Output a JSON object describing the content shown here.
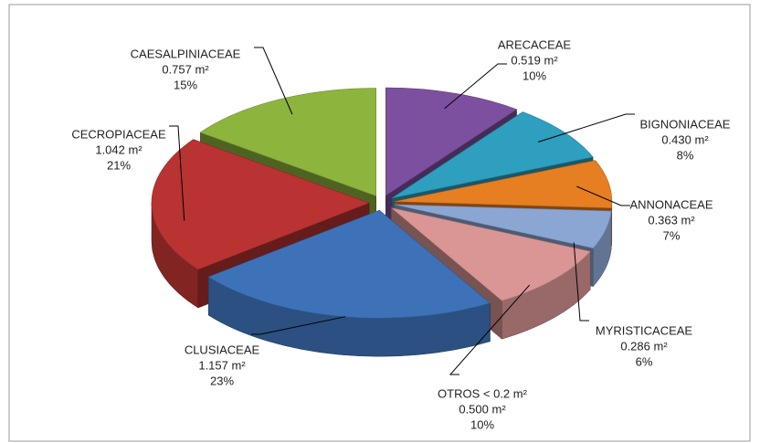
{
  "chart_data": {
    "type": "pie3d",
    "categories": [
      "ARECACEAE",
      "BIGNONIACEAE",
      "ANNONACEAE",
      "MYRISTICACEAE",
      "OTROS <  0.2 m²",
      "CLUSIACEAE",
      "CECROPIACEAE",
      "CAESALPINIACEAE"
    ],
    "values": [
      0.519,
      0.43,
      0.363,
      0.286,
      0.5,
      1.157,
      1.042,
      0.757
    ],
    "value_labels": [
      "0.519 m²",
      "0.430 m²",
      "0.363 m²",
      "0.286 m²",
      "0.500 m²",
      "1.157 m²",
      "1.042 m²",
      "0.757 m²"
    ],
    "percents": [
      10,
      8,
      7,
      6,
      10,
      23,
      21,
      15
    ],
    "percent_labels": [
      "10%",
      "8%",
      "7%",
      "6%",
      "10%",
      "23%",
      "21%",
      "15%"
    ],
    "colors": [
      "#7d509f",
      "#2e9fbf",
      "#e67e22",
      "#8ba6d3",
      "#d99694",
      "#3d72b8",
      "#b83331",
      "#8db43d"
    ]
  }
}
